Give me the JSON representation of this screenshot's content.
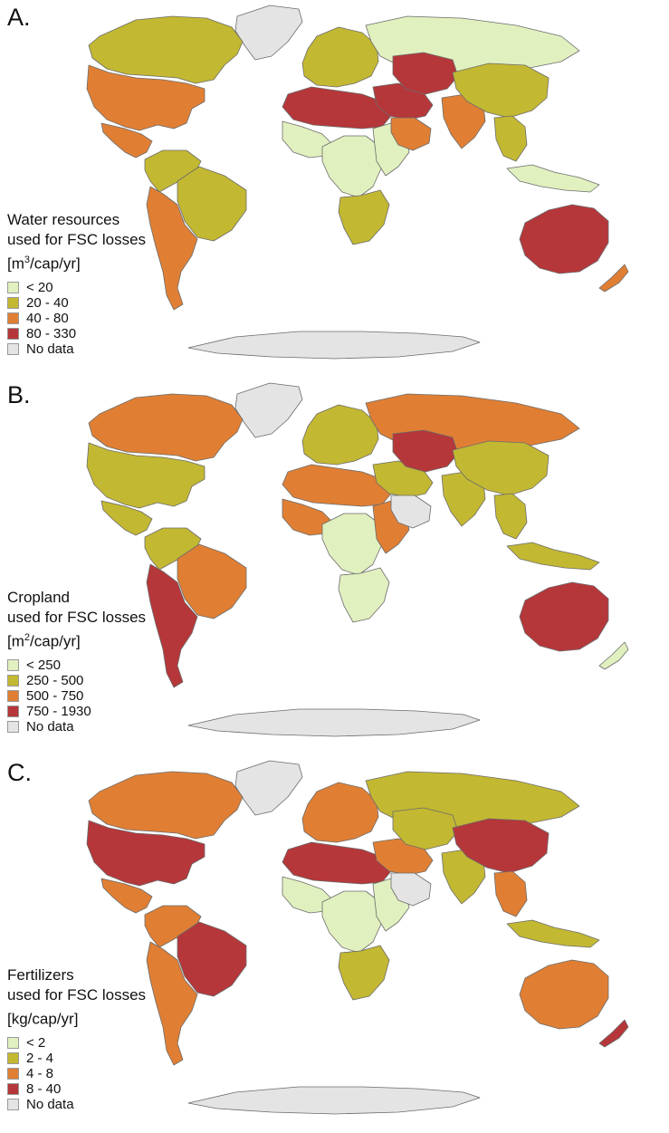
{
  "colors": {
    "c1": "#e1f0bf",
    "c2": "#c3b832",
    "c3": "#e07f34",
    "c4": "#b5373a",
    "nodata": "#e4e4e4"
  },
  "panels": [
    {
      "letter": "A.",
      "title_line1": "Water resources",
      "title_line2": "used for FSC losses",
      "unit_pre": "[m",
      "unit_sup": "3",
      "unit_post": "/cap/yr]",
      "legend": [
        {
          "label": "< 20",
          "color": "#e1f0bf"
        },
        {
          "label": "20 - 40",
          "color": "#c3b832"
        },
        {
          "label": "40 - 80",
          "color": "#e07f34"
        },
        {
          "label": "80 - 330",
          "color": "#b5373a"
        },
        {
          "label": "No data",
          "color": "#e4e4e4"
        }
      ],
      "regions": {
        "canada": "#c3b832",
        "usa": "#e07f34",
        "mexico": "#e07f34",
        "s_america_north": "#c3b832",
        "brazil": "#c3b832",
        "s_america_south": "#e07f34",
        "greenland": "#e4e4e4",
        "europe": "#c3b832",
        "russia": "#e1f0bf",
        "n_africa": "#b5373a",
        "w_africa": "#e1f0bf",
        "c_africa": "#e1f0bf",
        "e_africa": "#e1f0bf",
        "s_africa": "#c3b832",
        "middle_east": "#b5373a",
        "arabia": "#e07f34",
        "c_asia": "#b5373a",
        "south_asia": "#e07f34",
        "china": "#c3b832",
        "se_asia": "#c3b832",
        "indonesia": "#e1f0bf",
        "australia": "#b5373a",
        "nz": "#e07f34",
        "antarctica": "#e4e4e4"
      }
    },
    {
      "letter": "B.",
      "title_line1": "Cropland",
      "title_line2": "used for FSC losses",
      "unit_pre": "[m",
      "unit_sup": "2",
      "unit_post": "/cap/yr]",
      "legend": [
        {
          "label": "< 250",
          "color": "#e1f0bf"
        },
        {
          "label": "250 - 500",
          "color": "#c3b832"
        },
        {
          "label": "500 - 750",
          "color": "#e07f34"
        },
        {
          "label": "750 - 1930",
          "color": "#b5373a"
        },
        {
          "label": "No data",
          "color": "#e4e4e4"
        }
      ],
      "regions": {
        "canada": "#e07f34",
        "usa": "#c3b832",
        "mexico": "#c3b832",
        "s_america_north": "#c3b832",
        "brazil": "#e07f34",
        "s_america_south": "#b5373a",
        "greenland": "#e4e4e4",
        "europe": "#c3b832",
        "russia": "#e07f34",
        "n_africa": "#e07f34",
        "w_africa": "#e07f34",
        "c_africa": "#e1f0bf",
        "e_africa": "#e07f34",
        "s_africa": "#e1f0bf",
        "middle_east": "#c3b832",
        "arabia": "#e4e4e4",
        "c_asia": "#b5373a",
        "south_asia": "#c3b832",
        "china": "#c3b832",
        "se_asia": "#c3b832",
        "indonesia": "#c3b832",
        "australia": "#b5373a",
        "nz": "#e1f0bf",
        "antarctica": "#e4e4e4"
      }
    },
    {
      "letter": "C.",
      "title_line1": "Fertilizers",
      "title_line2": "used for FSC losses",
      "unit_pre": "[kg/cap/yr]",
      "unit_sup": "",
      "unit_post": "",
      "legend": [
        {
          "label": "< 2",
          "color": "#e1f0bf"
        },
        {
          "label": "2 - 4",
          "color": "#c3b832"
        },
        {
          "label": "4 - 8",
          "color": "#e07f34"
        },
        {
          "label": "8 - 40",
          "color": "#b5373a"
        },
        {
          "label": "No data",
          "color": "#e4e4e4"
        }
      ],
      "regions": {
        "canada": "#e07f34",
        "usa": "#b5373a",
        "mexico": "#e07f34",
        "s_america_north": "#e07f34",
        "brazil": "#b5373a",
        "s_america_south": "#e07f34",
        "greenland": "#e4e4e4",
        "europe": "#e07f34",
        "russia": "#c3b832",
        "n_africa": "#b5373a",
        "w_africa": "#e1f0bf",
        "c_africa": "#e1f0bf",
        "e_africa": "#e1f0bf",
        "s_africa": "#c3b832",
        "middle_east": "#e07f34",
        "arabia": "#e4e4e4",
        "c_asia": "#c3b832",
        "south_asia": "#c3b832",
        "china": "#b5373a",
        "se_asia": "#e07f34",
        "indonesia": "#c3b832",
        "australia": "#e07f34",
        "nz": "#b5373a",
        "antarctica": "#e4e4e4"
      }
    }
  ]
}
